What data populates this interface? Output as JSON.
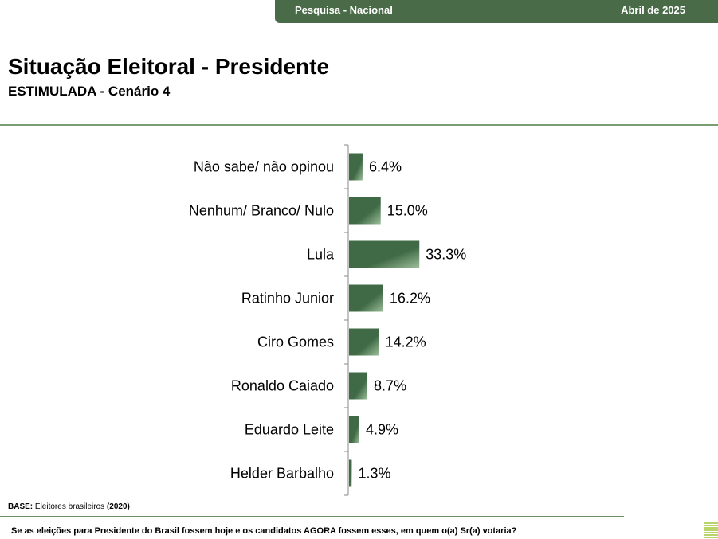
{
  "header": {
    "survey_label": "Pesquisa - Nacional",
    "date_label": "Abril de 2025"
  },
  "title": "Situação Eleitoral - Presidente",
  "subtitle": "ESTIMULADA - Cenário 4",
  "colors": {
    "banner": "#4a6b47",
    "bar_dark": "#3f6a45",
    "bar_light": "#9cbf9a",
    "rule": "#7a9e72"
  },
  "chart_data": {
    "type": "bar",
    "orientation": "horizontal",
    "categories": [
      "Não sabe/ não opinou",
      "Nenhum/ Branco/ Nulo",
      "Lula",
      "Ratinho Junior",
      "Ciro Gomes",
      "Ronaldo Caiado",
      "Eduardo Leite",
      "Helder Barbalho"
    ],
    "values": [
      6.4,
      15.0,
      33.3,
      16.2,
      14.2,
      8.7,
      4.9,
      1.3
    ],
    "value_labels": [
      "6.4%",
      "15.0%",
      "33.3%",
      "16.2%",
      "14.2%",
      "8.7%",
      "4.9%",
      "1.3%"
    ],
    "xlim": [
      0,
      100
    ],
    "grid": false,
    "legend": "none"
  },
  "footer": {
    "base_label": "BASE:",
    "base_text": "Eleitores brasileiros",
    "base_year": "(2020)",
    "question": "Se as eleições para Presidente do Brasil fossem hoje e os candidatos AGORA fossem esses, em quem o(a) Sr(a) votaria?"
  }
}
